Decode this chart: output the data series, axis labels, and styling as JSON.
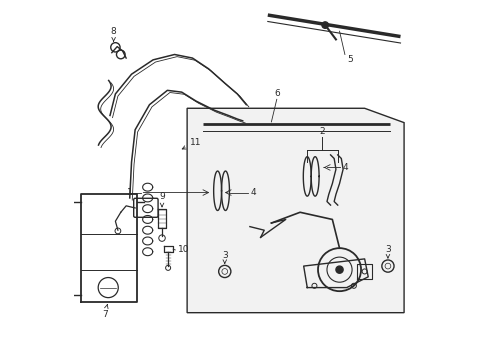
{
  "bg_color": "#ffffff",
  "line_color": "#2a2a2a",
  "box_fill": "#f2f2f2"
}
